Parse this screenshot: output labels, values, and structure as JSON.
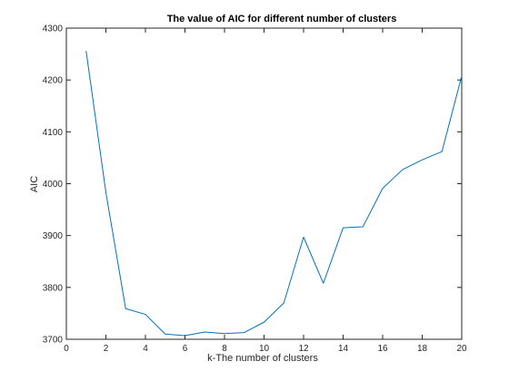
{
  "colors": {
    "line": "#0072bd",
    "axis": "#262626",
    "background": "#ffffff"
  },
  "chart_data": {
    "type": "line",
    "title": "The value of AIC for different number of clusters",
    "xlabel": "k-The number of clusters",
    "ylabel": "AIC",
    "xlim": [
      0,
      20
    ],
    "ylim": [
      3700,
      4300
    ],
    "grid": false,
    "xticks": [
      0,
      2,
      4,
      6,
      8,
      10,
      12,
      14,
      16,
      18,
      20
    ],
    "yticks": [
      3700,
      3800,
      3900,
      4000,
      4100,
      4200,
      4300
    ],
    "x": [
      1,
      2,
      3,
      4,
      5,
      6,
      7,
      8,
      9,
      10,
      11,
      12,
      13,
      14,
      15,
      16,
      17,
      18,
      19,
      20
    ],
    "series": [
      {
        "values": [
          4256,
          3983,
          3759,
          3748,
          3710,
          3707,
          3714,
          3711,
          3713,
          3733,
          3770,
          3897,
          3808,
          3915,
          3917,
          3991,
          4027,
          4046,
          4062,
          4208
        ]
      }
    ]
  }
}
